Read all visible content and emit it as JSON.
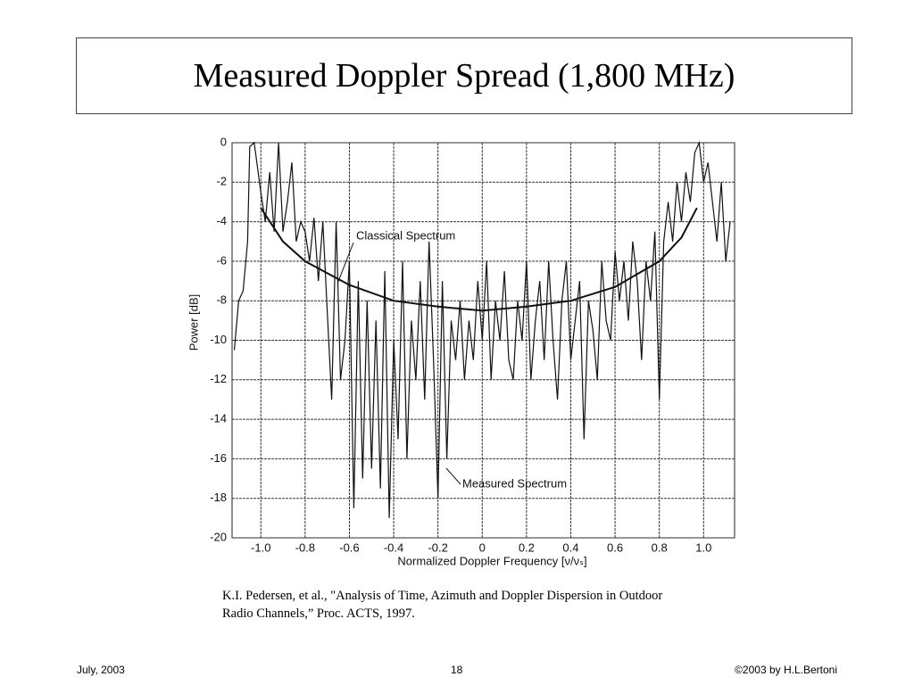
{
  "slide_title": "Measured Doppler Spread (1,800 MHz)",
  "citation": [
    "K.I. Pedersen, et al., \"Analysis of Time, Azimuth and Doppler Dispersion in Outdoor",
    "Radio Channels,” Proc. ACTS, 1997."
  ],
  "footer": {
    "left": "July, 2003",
    "center": "18",
    "right": "©2003 by H.L.Bertoni"
  },
  "chart_data": {
    "type": "line",
    "x_label": "Normalized Doppler Frequency [ν/νₛ]",
    "y_label": "Power [dB]",
    "annotations": [
      "Classical Spectrum",
      "Measured Spectrum"
    ],
    "xlim": [
      -1.13,
      1.14
    ],
    "ylim": [
      -20,
      0
    ],
    "xticks": [
      {
        "value": -1,
        "label": "-1.0"
      },
      -0.8,
      -0.6,
      -0.4,
      -0.2,
      0,
      0.2,
      0.4,
      0.6,
      0.8,
      {
        "value": 1,
        "label": "1.0"
      }
    ],
    "yticks": [
      0,
      -2,
      -4,
      -6,
      -8,
      -10,
      -12,
      -14,
      -16,
      -18,
      -20
    ],
    "grid": true,
    "series": [
      {
        "name": "Measured Spectrum",
        "color": "#111111",
        "x": [
          -1.12,
          -1.1,
          -1.08,
          -1.06,
          -1.05,
          -1.03,
          -1.0,
          -0.98,
          -0.96,
          -0.94,
          -0.92,
          -0.9,
          -0.88,
          -0.86,
          -0.84,
          -0.82,
          -0.8,
          -0.78,
          -0.76,
          -0.74,
          -0.72,
          -0.7,
          -0.68,
          -0.66,
          -0.64,
          -0.62,
          -0.6,
          -0.58,
          -0.56,
          -0.54,
          -0.52,
          -0.5,
          -0.48,
          -0.46,
          -0.44,
          -0.42,
          -0.4,
          -0.38,
          -0.36,
          -0.34,
          -0.32,
          -0.3,
          -0.28,
          -0.26,
          -0.24,
          -0.22,
          -0.2,
          -0.18,
          -0.16,
          -0.14,
          -0.12,
          -0.1,
          -0.08,
          -0.06,
          -0.04,
          -0.02,
          0,
          0.02,
          0.04,
          0.06,
          0.08,
          0.1,
          0.12,
          0.14,
          0.16,
          0.18,
          0.2,
          0.22,
          0.24,
          0.26,
          0.28,
          0.3,
          0.32,
          0.34,
          0.36,
          0.38,
          0.4,
          0.42,
          0.44,
          0.46,
          0.48,
          0.5,
          0.52,
          0.54,
          0.56,
          0.58,
          0.6,
          0.62,
          0.64,
          0.66,
          0.68,
          0.7,
          0.72,
          0.74,
          0.76,
          0.78,
          0.8,
          0.82,
          0.84,
          0.86,
          0.88,
          0.9,
          0.92,
          0.94,
          0.96,
          0.98,
          1.0,
          1.02,
          1.04,
          1.06,
          1.08,
          1.1,
          1.12
        ],
        "values": [
          -10.5,
          -8,
          -7.5,
          -5,
          -0.2,
          0,
          -2.5,
          -4,
          -1.5,
          -4.5,
          0,
          -4.5,
          -3,
          -1,
          -5,
          -4,
          -4.5,
          -6,
          -3.8,
          -7,
          -4,
          -8.5,
          -13,
          -4,
          -12,
          -10,
          -6,
          -18.5,
          -7,
          -17,
          -8,
          -16.5,
          -9,
          -17.5,
          -6.5,
          -19,
          -10,
          -15,
          -6,
          -16,
          -9,
          -12,
          -7,
          -13,
          -5,
          -11,
          -18,
          -7,
          -16,
          -9,
          -11,
          -8,
          -12,
          -9,
          -11,
          -7,
          -10,
          -6,
          -12,
          -8,
          -10,
          -6.5,
          -11,
          -12,
          -8,
          -10,
          -6,
          -12,
          -9,
          -7,
          -11,
          -6,
          -10,
          -13,
          -8,
          -6,
          -11,
          -9,
          -7,
          -15,
          -8,
          -9.5,
          -12,
          -6,
          -9,
          -10,
          -5.5,
          -8,
          -6,
          -9,
          -5,
          -7,
          -11,
          -6,
          -8,
          -4.5,
          -13,
          -5,
          -3,
          -5,
          -2,
          -4,
          -1.5,
          -3,
          -0.5,
          0,
          -2,
          -1,
          -3,
          -5,
          -2,
          -6,
          -4
        ]
      },
      {
        "name": "Classical Spectrum",
        "color": "#111111",
        "x": [
          -1.0,
          -0.9,
          -0.8,
          -0.6,
          -0.4,
          -0.2,
          0,
          0.2,
          0.4,
          0.6,
          0.8,
          0.9,
          0.97
        ],
        "values": [
          -3.3,
          -5,
          -6,
          -7.2,
          -8,
          -8.3,
          -8.5,
          -8.3,
          -8,
          -7.3,
          -6,
          -4.8,
          -3.3
        ]
      }
    ]
  }
}
